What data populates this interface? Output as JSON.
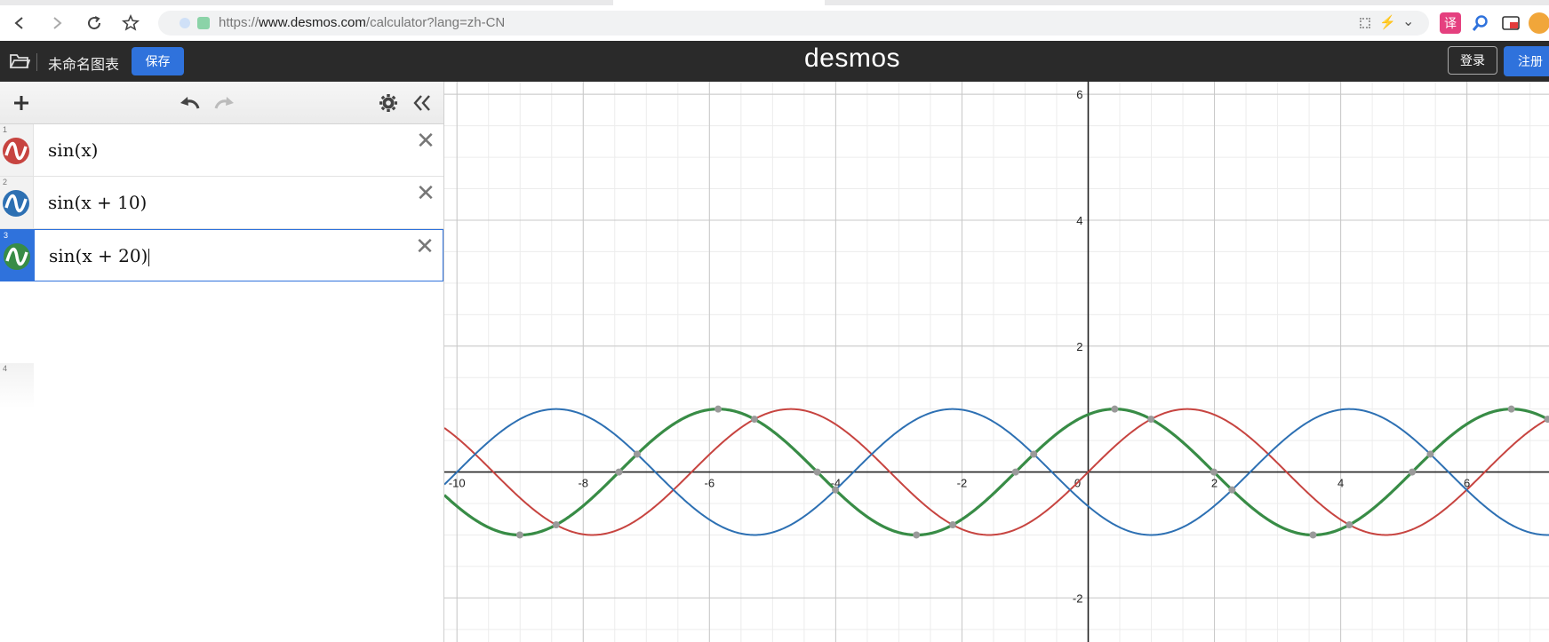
{
  "browser": {
    "url_prefix": "https://",
    "url_host": "www.desmos.com",
    "url_path": "/calculator?lang=zh-CN",
    "icons": [
      "back-icon",
      "forward-icon",
      "reload-icon",
      "star-icon",
      "qr-icon",
      "bolt-icon",
      "chevron-down-icon",
      "translate-icon",
      "search-icon",
      "cast-icon",
      "avatar-icon"
    ]
  },
  "app": {
    "graph_title": "未命名图表",
    "save_label": "保存",
    "logo": "desmos",
    "login_label": "登录",
    "signup_label": "注册",
    "accent_color": "#2f72dc"
  },
  "toolbar": {
    "icons": [
      "plus-icon",
      "undo-icon",
      "redo-icon",
      "gear-icon",
      "collapse-icon"
    ]
  },
  "expressions": [
    {
      "num": "1",
      "latex": "sin(x)",
      "color": "#c74440",
      "phase": 0,
      "selected": false
    },
    {
      "num": "2",
      "latex": "sin(x + 10)",
      "color": "#2d70b3",
      "phase": 10,
      "selected": false
    },
    {
      "num": "3",
      "latex": "sin(x + 20)",
      "color": "#388c46",
      "phase": 20,
      "selected": true
    },
    {
      "num": "4",
      "latex": "",
      "color": "",
      "selected": false
    }
  ],
  "chart_data": {
    "type": "line",
    "xlim": [
      -10.2,
      7.3
    ],
    "ylim": [
      -2.7,
      6.2
    ],
    "x_ticks": [
      "-10",
      "-8",
      "-6",
      "-4",
      "-2",
      "0",
      "2",
      "4",
      "6"
    ],
    "y_ticks": [
      "6",
      "4",
      "2",
      "-2"
    ],
    "grid": true,
    "series": [
      {
        "expression": "sin(x)",
        "color": "#c74440"
      },
      {
        "expression": "sin(x + 10)",
        "color": "#2d70b3"
      },
      {
        "expression": "sin(x + 20)",
        "color": "#388c46",
        "highlighted": true
      }
    ]
  }
}
